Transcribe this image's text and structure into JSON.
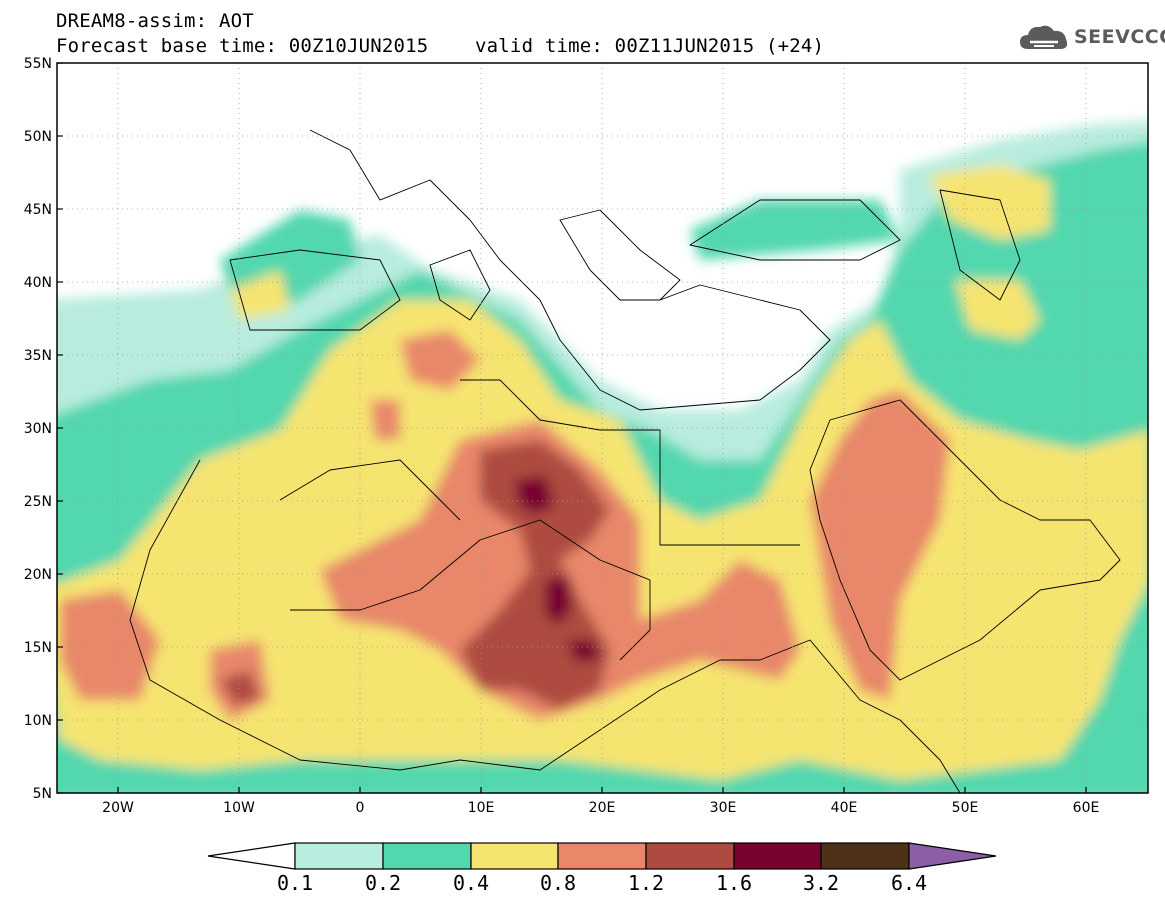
{
  "title": {
    "line1": "DREAM8-assim: AOT",
    "base_time_label": "Forecast base time: 00Z10JUN2015",
    "valid_time_label": "valid time: 00Z11JUN2015 (+24)"
  },
  "logo": {
    "text": "SEEVCCC",
    "icon": "cloud-icon"
  },
  "map": {
    "variable": "AOT",
    "lon_range": [
      -25,
      65
    ],
    "lat_range": [
      5,
      55
    ],
    "lat_labels": [
      "55N",
      "50N",
      "45N",
      "40N",
      "35N",
      "30N",
      "25N",
      "20N",
      "15N",
      "10N",
      "5N"
    ],
    "lon_labels": [
      "20W",
      "10W",
      "0",
      "10E",
      "20E",
      "30E",
      "40E",
      "50E",
      "60E"
    ]
  },
  "legend": {
    "levels": [
      "0.1",
      "0.2",
      "0.4",
      "0.8",
      "1.2",
      "1.6",
      "3.2",
      "6.4"
    ],
    "colors": [
      "#ffffff",
      "#b8ecde",
      "#53d7ae",
      "#f6e471",
      "#e8876a",
      "#ad4b41",
      "#7a0230",
      "#4d3119",
      "#8c5ea4"
    ]
  }
}
